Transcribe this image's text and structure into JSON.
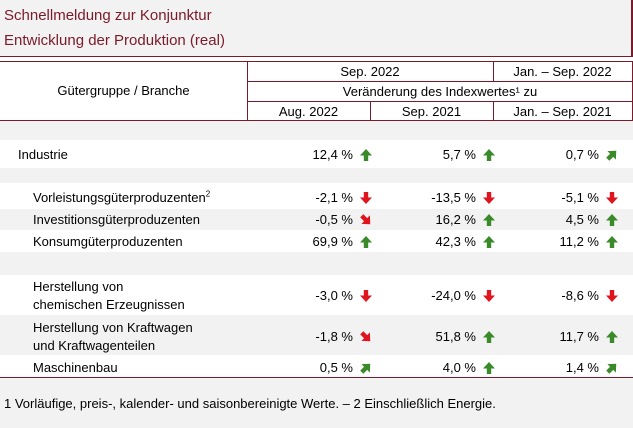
{
  "header": {
    "title1": "Schnellmeldung zur Konjunktur",
    "title2": "Entwicklung der Produktion (real)"
  },
  "table": {
    "col_group_label": "Gütergruppe / Branche",
    "span_sep": "Sep. 2022",
    "span_jan": "Jan. – Sep. 2022",
    "subheader": "Veränderung des Indexwertes¹ zu",
    "col1": "Aug. 2022",
    "col2": "Sep. 2021",
    "col3": "Jan. – Sep. 2021"
  },
  "rows": [
    {
      "label": "Industrie",
      "v1": "12,4 %",
      "a1": "up",
      "v2": "5,7 %",
      "a2": "up",
      "v3": "0,7 %",
      "a3": "up-right"
    },
    {
      "label": "Vorleistungsgüterproduzenten",
      "sup": "2",
      "v1": "-2,1 %",
      "a1": "down",
      "v2": "-13,5 %",
      "a2": "down",
      "v3": "-5,1 %",
      "a3": "down"
    },
    {
      "label": "Investitionsgüterproduzenten",
      "v1": "-0,5 %",
      "a1": "down-right",
      "v2": "16,2 %",
      "a2": "up",
      "v3": "4,5 %",
      "a3": "up"
    },
    {
      "label": "Konsumgüterproduzenten",
      "v1": "69,9 %",
      "a1": "up",
      "v2": "42,3 %",
      "a2": "up",
      "v3": "11,2 %",
      "a3": "up"
    },
    {
      "label1": "Herstellung von",
      "label2": "chemischen Erzeugnissen",
      "v1": "-3,0 %",
      "a1": "down",
      "v2": "-24,0 %",
      "a2": "down",
      "v3": "-8,6 %",
      "a3": "down"
    },
    {
      "label1": "Herstellung von Kraftwagen",
      "label2": "und Kraftwagenteilen",
      "v1": "-1,8 %",
      "a1": "down-right",
      "v2": "51,8 %",
      "a2": "up",
      "v3": "11,7 %",
      "a3": "up"
    },
    {
      "label": "Maschinenbau",
      "v1": "0,5 %",
      "a1": "up-right",
      "v2": "4,0 %",
      "a2": "up",
      "v3": "1,4 %",
      "a3": "up-right"
    }
  ],
  "colors": {
    "up": "#3a8a2a",
    "down": "#e0141e",
    "accent": "#7b1a2b",
    "band": "#f2f2f2"
  },
  "footnote": "1 Vorläufige, preis-, kalender- und saisonbereinigte Werte. – 2 Einschließlich Energie."
}
